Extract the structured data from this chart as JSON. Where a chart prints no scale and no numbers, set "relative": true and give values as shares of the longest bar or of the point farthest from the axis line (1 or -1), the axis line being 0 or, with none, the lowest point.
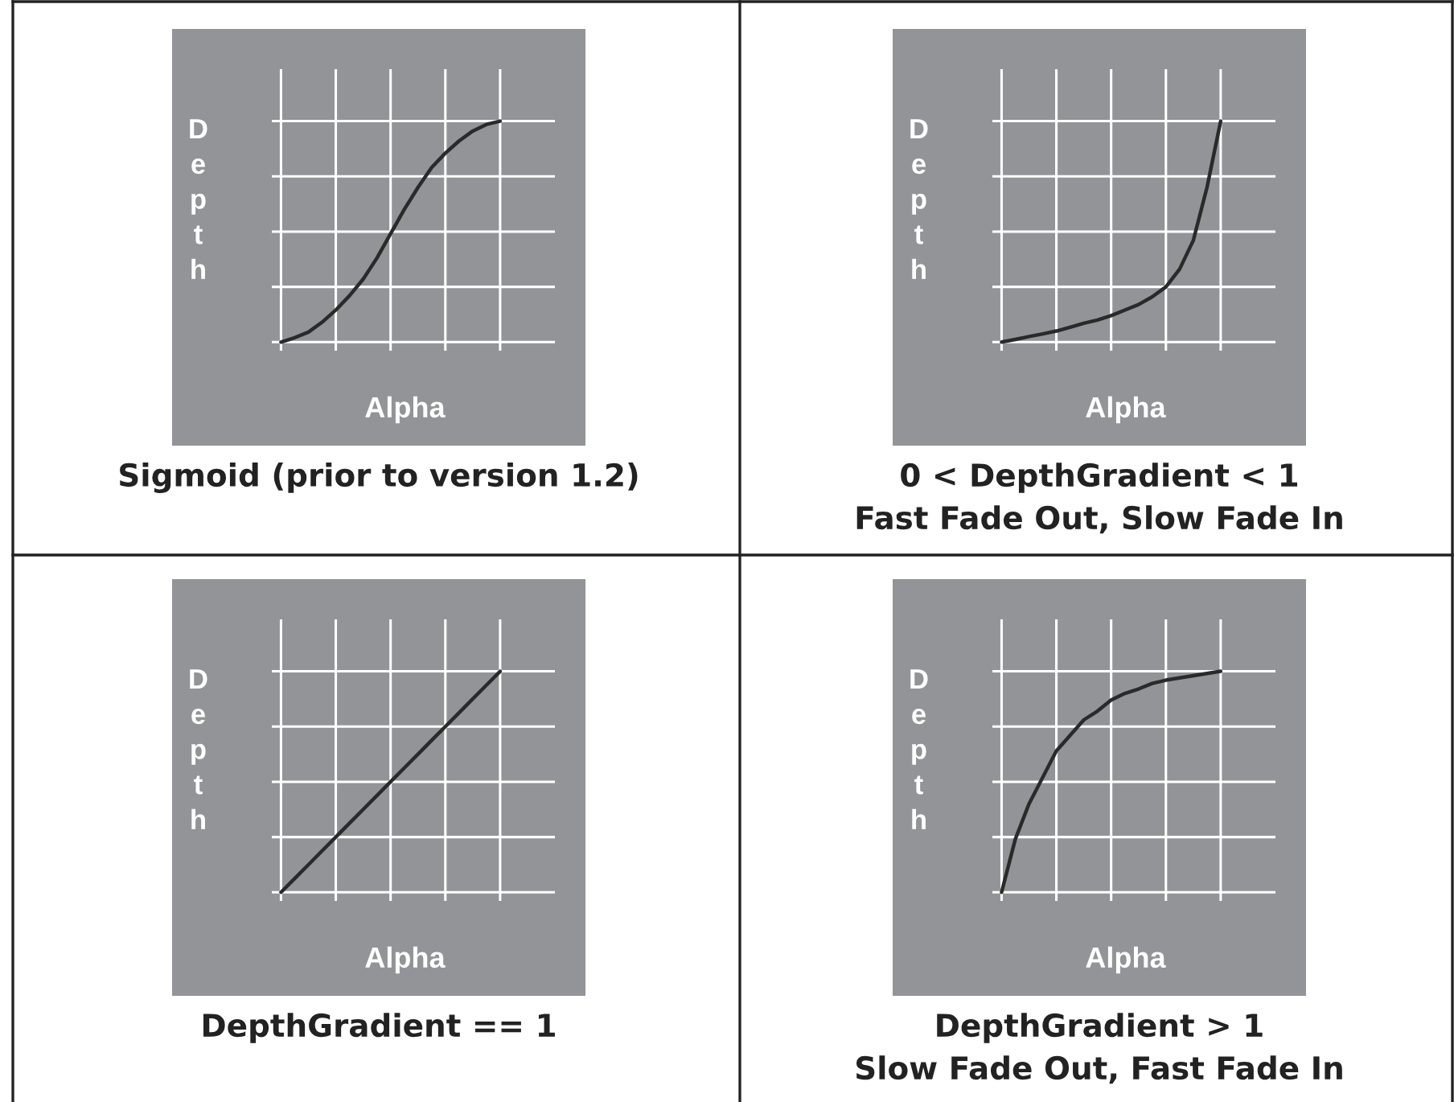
{
  "chart_data": [
    {
      "type": "line",
      "title": "Sigmoid (prior to version 1.2)",
      "xlabel": "Alpha",
      "ylabel": "Depth",
      "relative": true,
      "grid": true,
      "color": "#2a2a2a",
      "categories": [
        null,
        null,
        null,
        null,
        null,
        null,
        null,
        null,
        null,
        null,
        null,
        null,
        null,
        null,
        null,
        null,
        null
      ],
      "values": [
        0,
        0.02,
        0.045,
        0.09,
        0.145,
        0.21,
        0.285,
        0.38,
        0.49,
        0.6,
        0.7,
        0.79,
        0.855,
        0.91,
        0.955,
        0.985,
        1
      ]
    },
    {
      "type": "line",
      "title": "0 < DepthGradient < 1",
      "subtitle": "Fast Fade Out, Slow Fade In",
      "xlabel": "Alpha",
      "ylabel": "Depth",
      "relative": true,
      "grid": true,
      "color": "#2a2a2a",
      "categories": [
        null,
        null,
        null,
        null,
        null,
        null,
        null,
        null,
        null,
        null,
        null,
        null,
        null,
        null,
        null,
        null,
        null
      ],
      "values": [
        0,
        0.012,
        0.025,
        0.037,
        0.05,
        0.067,
        0.085,
        0.1,
        0.12,
        0.145,
        0.17,
        0.205,
        0.25,
        0.33,
        0.46,
        0.7,
        1
      ]
    },
    {
      "type": "line",
      "title": "DepthGradient == 1",
      "xlabel": "Alpha",
      "ylabel": "Depth",
      "relative": true,
      "grid": true,
      "color": "#2a2a2a",
      "categories": [
        null,
        null,
        null,
        null,
        null,
        null,
        null,
        null,
        null,
        null,
        null,
        null,
        null,
        null,
        null,
        null,
        null
      ],
      "values": [
        0,
        0.0625,
        0.125,
        0.1875,
        0.25,
        0.3125,
        0.375,
        0.4375,
        0.5,
        0.5625,
        0.625,
        0.6875,
        0.75,
        0.8125,
        0.875,
        0.9375,
        1
      ]
    },
    {
      "type": "line",
      "title": "DepthGradient > 1",
      "subtitle": "Slow Fade Out, Fast Fade In",
      "xlabel": "Alpha",
      "ylabel": "Depth",
      "relative": true,
      "grid": true,
      "color": "#2a2a2a",
      "categories": [
        null,
        null,
        null,
        null,
        null,
        null,
        null,
        null,
        null,
        null,
        null,
        null,
        null,
        null,
        null,
        null,
        null
      ],
      "values": [
        0,
        0.24,
        0.4,
        0.52,
        0.64,
        0.71,
        0.78,
        0.82,
        0.87,
        0.9,
        0.92,
        0.945,
        0.96,
        0.97,
        0.98,
        0.99,
        1
      ]
    }
  ]
}
